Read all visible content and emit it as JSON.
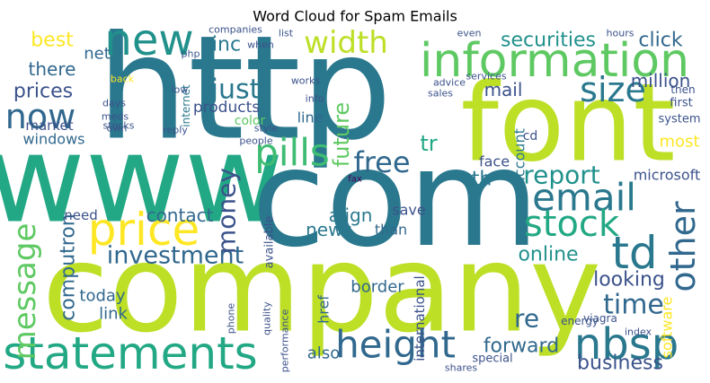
{
  "chart_data": {
    "type": "wordcloud",
    "title": "Word Cloud for Spam Emails",
    "words": [
      "http",
      "www",
      "com",
      "company",
      "font",
      "information",
      "statements",
      "price",
      "pills",
      "new",
      "now",
      "email",
      "stock",
      "td",
      "nbsp",
      "height",
      "size",
      "width",
      "message",
      "investment",
      "other",
      "money",
      "free",
      "report",
      "time",
      "re",
      "just",
      "securities",
      "click",
      "mail",
      "million",
      "future",
      "business",
      "looking",
      "online",
      "forward",
      "contact",
      "computron",
      "align",
      "news",
      "also",
      "prices",
      "best",
      "there",
      "net",
      "inc",
      "windows",
      "market",
      "products",
      "line",
      "color",
      "link",
      "today",
      "border",
      "than",
      "save",
      "face",
      "tr",
      "th",
      "most",
      "microsoft",
      "account",
      "cd",
      "need",
      "available",
      "href",
      "international",
      "software",
      "system",
      "first",
      "then",
      "internet",
      "people",
      "phone",
      "quality",
      "performance",
      "energy",
      "viagra",
      "index",
      "special",
      "shares",
      "services",
      "advice",
      "sales",
      "even",
      "hours",
      "list",
      "companies",
      "when",
      "works",
      "info",
      "style",
      "reply",
      "stocks",
      "meds",
      "days",
      "own",
      "back",
      "low",
      "php",
      "fax"
    ]
  }
}
